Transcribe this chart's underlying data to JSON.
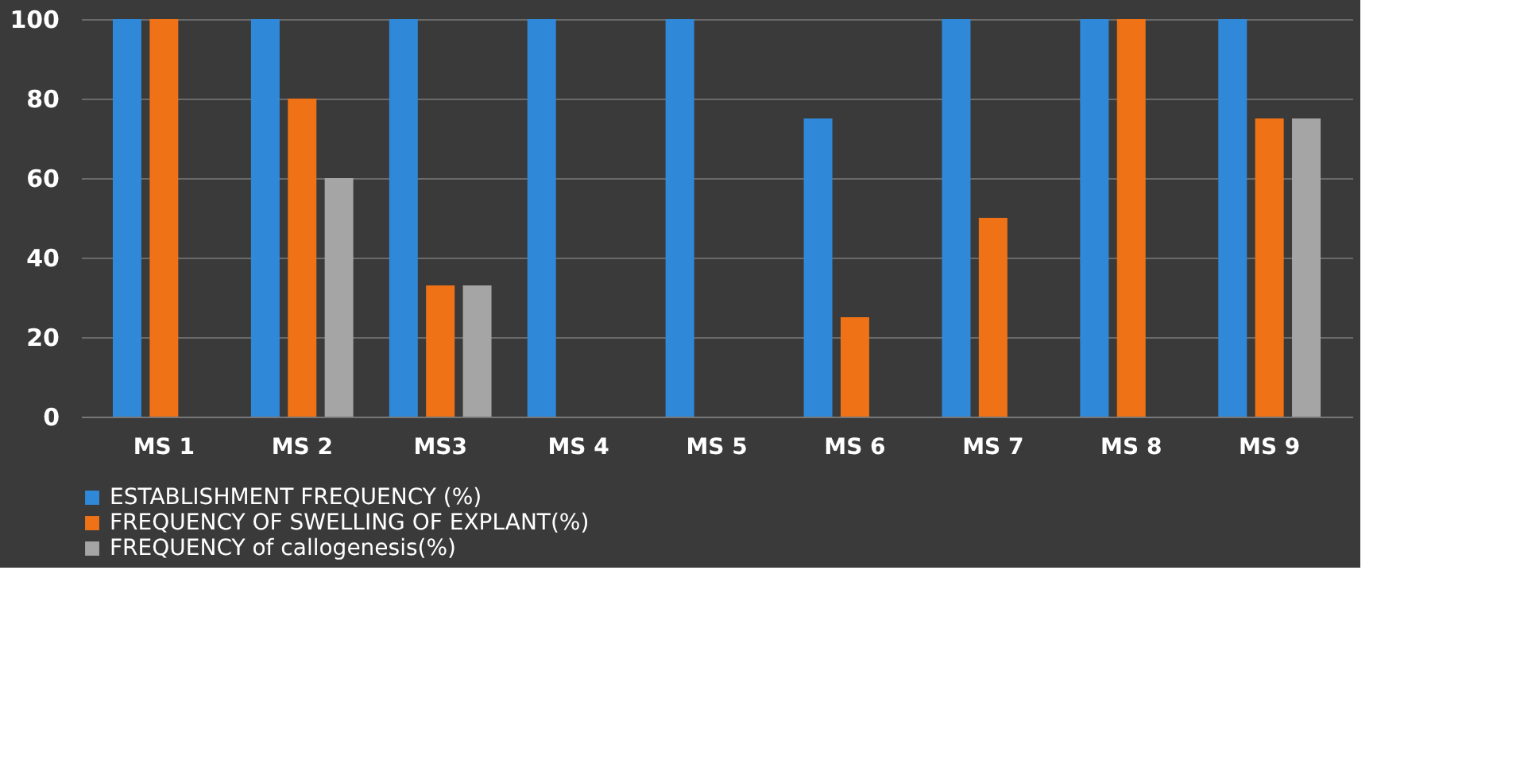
{
  "chart_data": {
    "type": "bar",
    "categories": [
      "MS 1",
      "MS 2",
      "MS3",
      "MS 4",
      "MS 5",
      "MS 6",
      "MS 7",
      "MS 8",
      "MS 9"
    ],
    "series": [
      {
        "name": "ESTABLISHMENT FREQUENCY (%)",
        "color": "#2f88d8",
        "values": [
          100,
          100,
          100,
          100,
          100,
          75,
          100,
          100,
          100
        ]
      },
      {
        "name": "FREQUENCY OF SWELLING OF EXPLANT(%)",
        "color": "#f07216",
        "values": [
          100,
          80,
          33,
          0,
          0,
          25,
          50,
          100,
          75
        ]
      },
      {
        "name": "FREQUENCY of callogenesis(%)",
        "color": "#a5a5a5",
        "values": [
          0,
          60,
          33,
          0,
          0,
          0,
          0,
          0,
          75
        ]
      }
    ],
    "ylim": [
      0,
      100
    ],
    "yticks": [
      0,
      20,
      40,
      60,
      80,
      100
    ],
    "grid": "y",
    "legend": "bottom"
  }
}
